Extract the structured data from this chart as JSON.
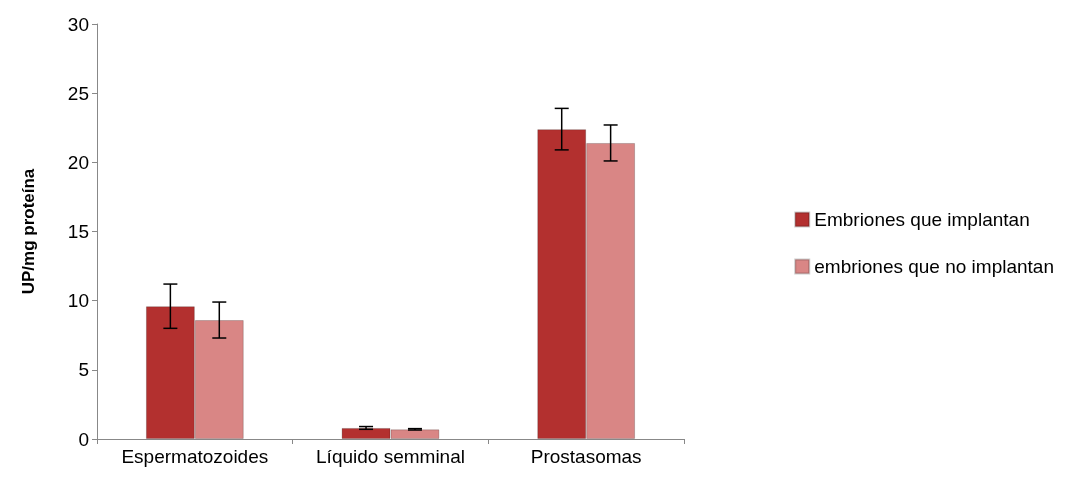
{
  "chart_data": {
    "type": "bar",
    "ylabel": "UP/mg proteína",
    "categories": [
      "Espermatozoides",
      "Líquido semminal",
      "Prostasomas"
    ],
    "series": [
      {
        "name": "Embriones que implantan",
        "color": "#b3302f",
        "values": [
          9.6,
          0.8,
          22.4
        ],
        "errors": [
          1.6,
          0.1,
          1.5
        ]
      },
      {
        "name": "embriones que no implantan",
        "color": "#d98685",
        "values": [
          8.6,
          0.7,
          21.4
        ],
        "errors": [
          1.3,
          0.05,
          1.3
        ]
      }
    ],
    "ylim": [
      0,
      30
    ],
    "yticks": [
      0,
      5,
      10,
      15,
      20,
      25,
      30
    ],
    "grid": false,
    "legend": "right"
  }
}
